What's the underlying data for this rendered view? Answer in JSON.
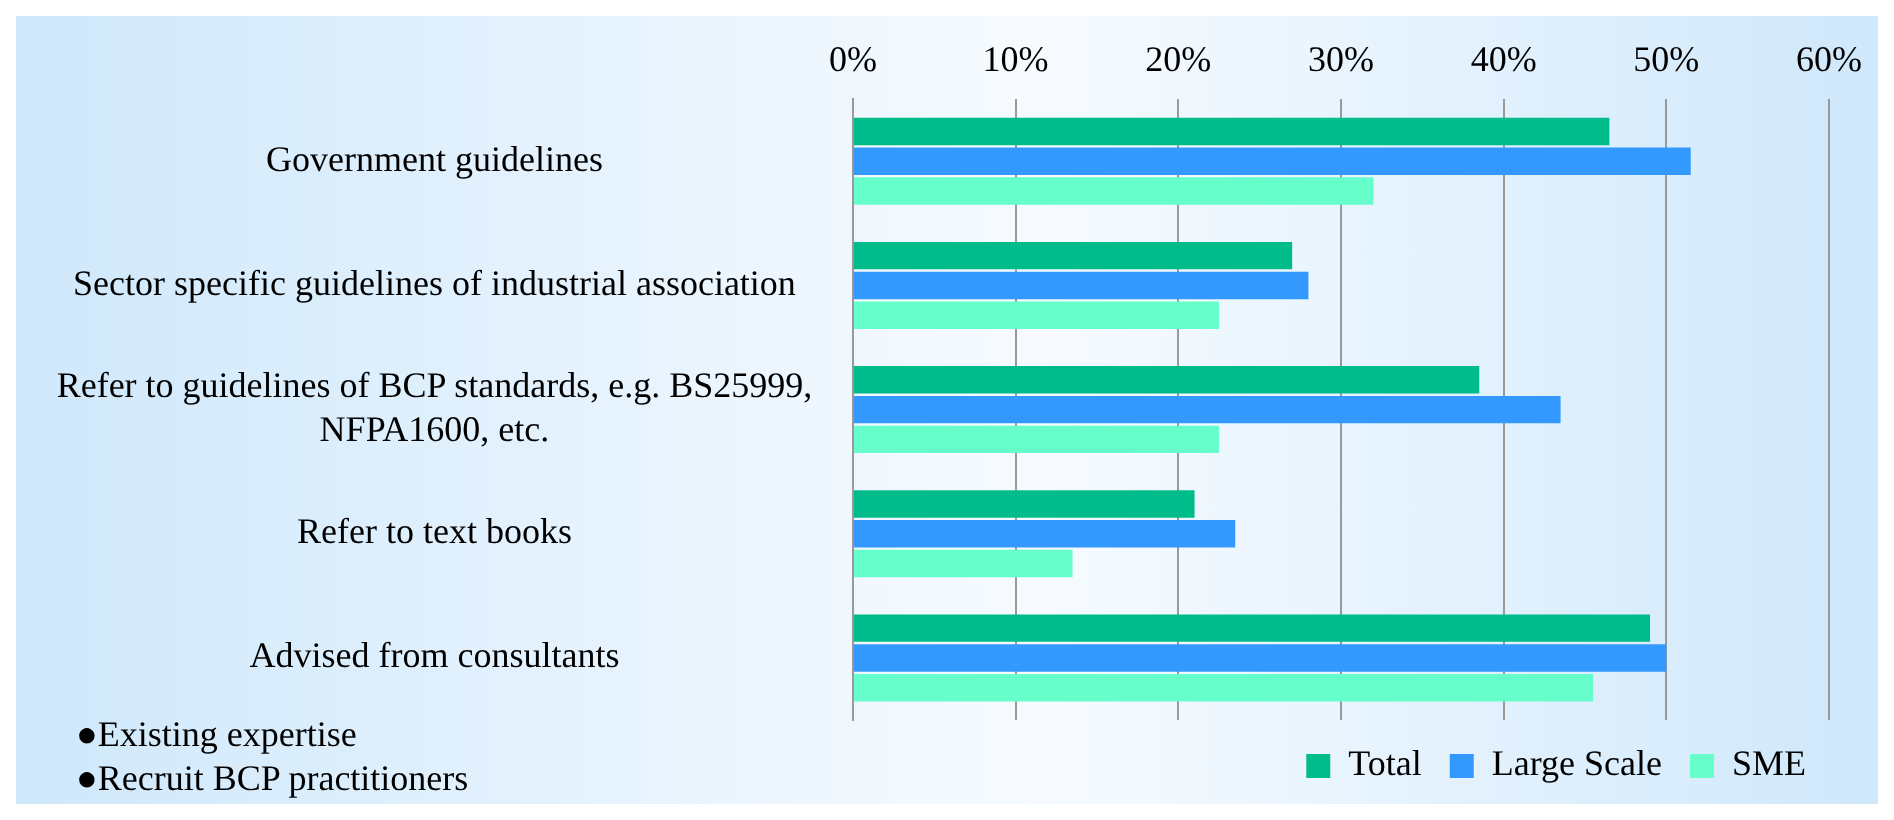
{
  "chart_data": {
    "type": "bar",
    "orientation": "horizontal",
    "categories": [
      "Government guidelines",
      "Sector specific guidelines of industrial association",
      "Refer to guidelines of BCP standards, e.g. BS25999, NFPA1600, etc.",
      "Refer to text books",
      "Advised from consultants"
    ],
    "series": [
      {
        "name": "Total",
        "color": "#00bb8a",
        "values": [
          46.5,
          27,
          38.5,
          21,
          49
        ]
      },
      {
        "name": "Large Scale",
        "color": "#3399ff",
        "values": [
          51.5,
          28,
          43.5,
          23.5,
          50
        ]
      },
      {
        "name": "SME",
        "color": "#66ffcc",
        "values": [
          32,
          22.5,
          22.5,
          13.5,
          45.5
        ]
      }
    ],
    "xlim": [
      0,
      60
    ],
    "xticks": [
      {
        "value": 0,
        "label": "0%"
      },
      {
        "value": 10,
        "label": "10%"
      },
      {
        "value": 20,
        "label": "20%"
      },
      {
        "value": 30,
        "label": "30%"
      },
      {
        "value": 40,
        "label": "40%"
      },
      {
        "value": 50,
        "label": "50%"
      },
      {
        "value": 60,
        "label": "60%"
      }
    ],
    "grid": "x",
    "legend": "bottom right",
    "annotations": [
      "●Existing expertise",
      "●Recruit BCP practitioners"
    ]
  }
}
